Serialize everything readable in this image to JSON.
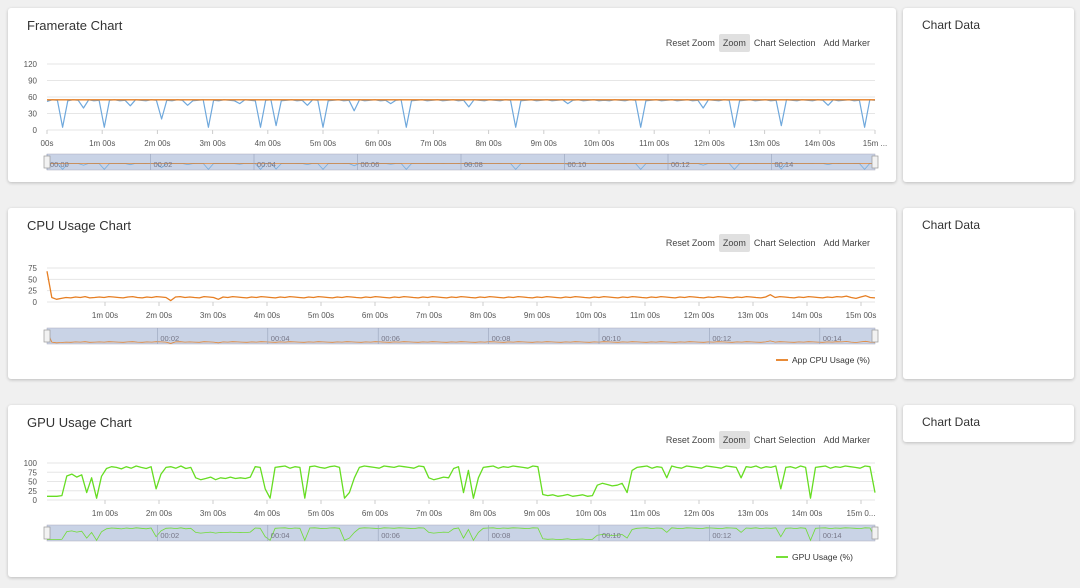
{
  "toolbar": {
    "reset_zoom": "Reset Zoom",
    "zoom": "Zoom",
    "chart_selection": "Chart Selection",
    "add_marker": "Add Marker"
  },
  "side_panels": {
    "title": "Chart Data"
  },
  "chart_data": [
    {
      "id": "fps",
      "type": "line",
      "title": "Framerate Chart",
      "ylim": [
        0,
        120
      ],
      "yticks": [
        "120",
        "90",
        "60",
        "30",
        "0"
      ],
      "xticks": [
        "00s",
        "1m 00s",
        "2m 00s",
        "3m 00s",
        "4m 00s",
        "5m 00s",
        "6m 00s",
        "7m 00s",
        "8m 00s",
        "9m 00s",
        "10m 00s",
        "11m 00s",
        "12m 00s",
        "13m 00s",
        "14m 00s",
        "15m ..."
      ],
      "nav_ticks": [
        "00:00",
        "00:02",
        "00:04",
        "00:06",
        "00:08",
        "00:10",
        "00:12",
        "00:14"
      ],
      "series": [
        {
          "color": "#6fa8dc",
          "values": [
            52,
            55,
            54,
            5,
            53,
            55,
            54,
            40,
            55,
            53,
            54,
            5,
            54,
            55,
            53,
            54,
            44,
            55,
            54,
            53,
            55,
            54,
            20,
            54,
            53,
            55,
            54,
            45,
            53,
            54,
            55,
            5,
            54,
            53,
            55,
            54,
            53,
            48,
            55,
            54,
            53,
            5,
            54,
            55,
            8,
            53,
            54,
            55,
            53,
            54,
            45,
            55,
            54,
            5,
            53,
            54,
            55,
            53,
            54,
            35,
            55,
            53,
            54,
            55,
            53,
            54,
            48,
            54,
            55,
            5,
            53,
            54,
            55,
            53,
            54,
            55,
            53,
            54,
            55,
            53,
            54,
            42,
            55,
            54,
            53,
            55,
            54,
            53,
            55,
            54,
            5,
            53,
            54,
            55,
            53,
            54,
            55,
            53,
            54,
            55,
            48,
            54,
            55,
            53,
            54,
            55,
            53,
            54,
            53,
            55,
            54,
            53,
            55,
            54,
            5,
            53,
            54,
            55,
            53,
            54,
            55,
            53,
            54,
            55,
            53,
            54,
            40,
            55,
            54,
            53,
            55,
            54,
            5,
            53,
            54,
            55,
            53,
            54,
            55,
            53,
            54,
            8,
            55,
            54,
            53,
            55,
            54,
            53,
            55,
            54,
            45,
            55,
            53,
            54,
            55,
            53,
            54,
            5,
            55,
            54
          ]
        },
        {
          "color": "#e67e22",
          "values": [
            55,
            55,
            55,
            55,
            55,
            55,
            55,
            55,
            55,
            55,
            55,
            55,
            55,
            55,
            55,
            55,
            55,
            55,
            55,
            55,
            55,
            55,
            55,
            55,
            55,
            55,
            55,
            55,
            55,
            55,
            55,
            55,
            55,
            55,
            55,
            55,
            55,
            55,
            55,
            55,
            55,
            55,
            55,
            55,
            55,
            55,
            55,
            55,
            55,
            55,
            55,
            55,
            55,
            55,
            55,
            55,
            55,
            55,
            55,
            55,
            55,
            55,
            55,
            55,
            55,
            55,
            55,
            55,
            55,
            55,
            55,
            55,
            55,
            55,
            55,
            55,
            55,
            55,
            55,
            55,
            55,
            55,
            55,
            55,
            55,
            55,
            55,
            55,
            55,
            55,
            55,
            55,
            55,
            55,
            55,
            55,
            55,
            55,
            55,
            55,
            55,
            55,
            55,
            55,
            55,
            55,
            55,
            55,
            55,
            55,
            55,
            55,
            55,
            55,
            55,
            55,
            55,
            55,
            55,
            55,
            55,
            55,
            55,
            55,
            55,
            55,
            55,
            55,
            55,
            55,
            55,
            55,
            55,
            55,
            55,
            55,
            55,
            55,
            55,
            55,
            55,
            55,
            55,
            55,
            55,
            55,
            55,
            55,
            55,
            55,
            55,
            55,
            55,
            55,
            55,
            55,
            55,
            55,
            55,
            55
          ]
        }
      ]
    },
    {
      "id": "cpu",
      "type": "line",
      "title": "CPU Usage Chart",
      "ylim": [
        0,
        75
      ],
      "yticks": [
        "75",
        "50",
        "25",
        "0"
      ],
      "xticks": [
        "1m 00s",
        "2m 00s",
        "3m 00s",
        "4m 00s",
        "5m 00s",
        "6m 00s",
        "7m 00s",
        "8m 00s",
        "9m 00s",
        "10m 00s",
        "11m 00s",
        "12m 00s",
        "13m 00s",
        "14m 00s",
        "15m 00s"
      ],
      "nav_ticks": [
        "00:02",
        "00:04",
        "00:06",
        "00:08",
        "00:10",
        "00:12",
        "00:14"
      ],
      "legend": "App CPU Usage (%)",
      "series": [
        {
          "name": "App CPU Usage (%)",
          "color": "#e67e22",
          "values": [
            68,
            10,
            6,
            8,
            10,
            9,
            11,
            10,
            12,
            9,
            10,
            11,
            10,
            12,
            11,
            10,
            9,
            11,
            12,
            10,
            9,
            11,
            10,
            12,
            11,
            10,
            3,
            11,
            12,
            10,
            11,
            10,
            9,
            12,
            11,
            10,
            6,
            11,
            10,
            12,
            11,
            10,
            9,
            11,
            10,
            12,
            11,
            10,
            9,
            11,
            10,
            12,
            11,
            10,
            9,
            11,
            10,
            12,
            11,
            10,
            9,
            11,
            10,
            12,
            11,
            10,
            9,
            11,
            10,
            12,
            11,
            10,
            9,
            11,
            10,
            12,
            11,
            10,
            9,
            11,
            10,
            12,
            11,
            10,
            9,
            11,
            10,
            12,
            11,
            10,
            9,
            11,
            10,
            12,
            11,
            10,
            9,
            11,
            10,
            12,
            11,
            10,
            9,
            11,
            10,
            12,
            11,
            10,
            9,
            11,
            10,
            12,
            11,
            10,
            9,
            11,
            10,
            12,
            11,
            10,
            9,
            11,
            10,
            12,
            11,
            10,
            9,
            11,
            10,
            12,
            11,
            10,
            9,
            11,
            10,
            12,
            11,
            10,
            9,
            11,
            10,
            12,
            11,
            10,
            9,
            11,
            10,
            12,
            11,
            10,
            9,
            11,
            16,
            10,
            12,
            11,
            10,
            9,
            11,
            10,
            12,
            11,
            10,
            9,
            11,
            10,
            12,
            11,
            13,
            10,
            8,
            11,
            14,
            10,
            9
          ]
        }
      ]
    },
    {
      "id": "gpu",
      "type": "line",
      "title": "GPU Usage Chart",
      "ylim": [
        0,
        100
      ],
      "yticks": [
        "100",
        "75",
        "50",
        "25",
        "0"
      ],
      "xticks": [
        "1m 00s",
        "2m 00s",
        "3m 00s",
        "4m 00s",
        "5m 00s",
        "6m 00s",
        "7m 00s",
        "8m 00s",
        "9m 00s",
        "10m 00s",
        "11m 00s",
        "12m 00s",
        "13m 00s",
        "14m 00s",
        "15m 0..."
      ],
      "nav_ticks": [
        "00:02",
        "00:04",
        "00:06",
        "00:08",
        "00:10",
        "00:12",
        "00:14"
      ],
      "legend": "GPU Usage (%)",
      "series": [
        {
          "name": "GPU Usage (%)",
          "color": "#66dd22",
          "values": [
            10,
            10,
            10,
            12,
            65,
            70,
            62,
            68,
            20,
            60,
            5,
            64,
            85,
            90,
            88,
            84,
            90,
            86,
            92,
            88,
            85,
            90,
            30,
            70,
            88,
            90,
            86,
            92,
            85,
            88,
            60,
            55,
            58,
            62,
            55,
            60,
            58,
            62,
            58,
            60,
            58,
            62,
            90,
            88,
            30,
            5,
            88,
            90,
            92,
            86,
            90,
            88,
            5,
            90,
            92,
            88,
            86,
            90,
            92,
            88,
            5,
            20,
            60,
            88,
            92,
            90,
            88,
            86,
            92,
            90,
            88,
            92,
            90,
            88,
            86,
            92,
            90,
            60,
            55,
            58,
            62,
            60,
            85,
            90,
            20,
            80,
            5,
            60,
            88,
            90,
            92,
            86,
            90,
            88,
            92,
            90,
            88,
            86,
            92,
            90,
            15,
            12,
            14,
            10,
            12,
            15,
            10,
            12,
            14,
            10,
            12,
            40,
            45,
            42,
            38,
            40,
            45,
            20,
            80,
            88,
            90,
            92,
            86,
            90,
            88,
            60,
            92,
            88,
            86,
            92,
            90,
            88,
            86,
            92,
            90,
            88,
            86,
            92,
            90,
            88,
            60,
            90,
            88,
            92,
            86,
            90,
            88,
            92,
            30,
            88,
            90,
            86,
            92,
            88,
            5,
            88,
            90,
            92,
            86,
            90,
            88,
            92,
            90,
            88,
            86,
            92,
            90,
            20
          ]
        }
      ]
    }
  ]
}
